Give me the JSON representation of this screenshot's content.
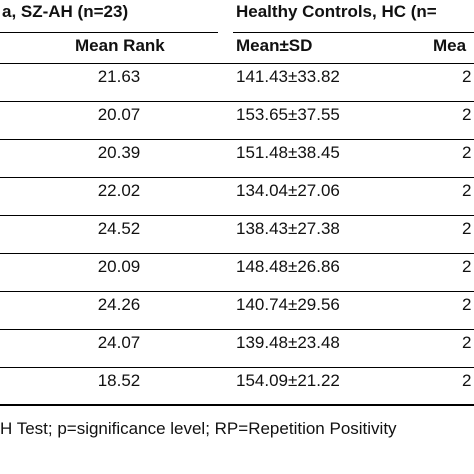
{
  "groups": {
    "left": "a, SZ-AH (n=23)",
    "right": "Healthy Controls, HC (n="
  },
  "headers": {
    "mean_rank": "Mean Rank",
    "mean_sd": "Mean±SD",
    "truncated": "Mea"
  },
  "rows": [
    {
      "mean_rank": "21.63",
      "mean_sd": "141.43±33.82",
      "truncated": "2"
    },
    {
      "mean_rank": "20.07",
      "mean_sd": "153.65±37.55",
      "truncated": "2"
    },
    {
      "mean_rank": "20.39",
      "mean_sd": "151.48±38.45",
      "truncated": "2"
    },
    {
      "mean_rank": "22.02",
      "mean_sd": "134.04±27.06",
      "truncated": "2"
    },
    {
      "mean_rank": "24.52",
      "mean_sd": "138.43±27.38",
      "truncated": "2"
    },
    {
      "mean_rank": "20.09",
      "mean_sd": "148.48±26.86",
      "truncated": "2"
    },
    {
      "mean_rank": "24.26",
      "mean_sd": "140.74±29.56",
      "truncated": "2"
    },
    {
      "mean_rank": "24.07",
      "mean_sd": "139.48±23.48",
      "truncated": "2"
    },
    {
      "mean_rank": "18.52",
      "mean_sd": "154.09±21.22",
      "truncated": "2"
    }
  ],
  "footnote": "H Test; p=significance level; RP=Repetition Positivity"
}
